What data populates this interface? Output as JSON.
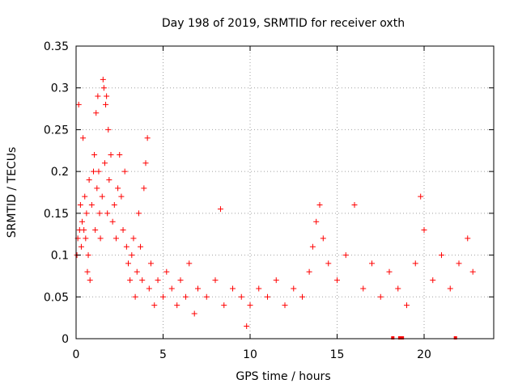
{
  "chart_data": {
    "type": "scatter",
    "title": "Day 198 of 2019, SRMTID for receiver oxth",
    "xlabel": "GPS time / hours",
    "ylabel": "SRMTID / TECUs",
    "xlim": [
      0,
      24
    ],
    "ylim": [
      0,
      0.35
    ],
    "xticks": [
      0,
      5,
      10,
      15,
      20
    ],
    "xtick_labels": [
      "0",
      "5",
      "10",
      "15",
      "20"
    ],
    "yticks": [
      0,
      0.05,
      0.1,
      0.15,
      0.2,
      0.25,
      0.3,
      0.35
    ],
    "ytick_labels": [
      "0",
      "0.05",
      "0.1",
      "0.15",
      "0.2",
      "0.25",
      "0.3",
      "0.35"
    ],
    "grid": true,
    "marker": "+",
    "color": "#ff0000",
    "series": [
      {
        "name": "SRMTID",
        "points": [
          [
            0.05,
            0.1
          ],
          [
            0.1,
            0.12
          ],
          [
            0.15,
            0.28
          ],
          [
            0.2,
            0.13
          ],
          [
            0.25,
            0.16
          ],
          [
            0.3,
            0.11
          ],
          [
            0.35,
            0.14
          ],
          [
            0.4,
            0.24
          ],
          [
            0.45,
            0.13
          ],
          [
            0.5,
            0.17
          ],
          [
            0.55,
            0.12
          ],
          [
            0.6,
            0.15
          ],
          [
            0.65,
            0.08
          ],
          [
            0.7,
            0.1
          ],
          [
            0.75,
            0.19
          ],
          [
            0.8,
            0.07
          ],
          [
            0.9,
            0.16
          ],
          [
            1.0,
            0.2
          ],
          [
            1.05,
            0.22
          ],
          [
            1.1,
            0.13
          ],
          [
            1.15,
            0.27
          ],
          [
            1.2,
            0.18
          ],
          [
            1.25,
            0.29
          ],
          [
            1.3,
            0.2
          ],
          [
            1.35,
            0.15
          ],
          [
            1.4,
            0.12
          ],
          [
            1.5,
            0.17
          ],
          [
            1.55,
            0.31
          ],
          [
            1.6,
            0.3
          ],
          [
            1.65,
            0.21
          ],
          [
            1.7,
            0.28
          ],
          [
            1.75,
            0.29
          ],
          [
            1.8,
            0.15
          ],
          [
            1.85,
            0.25
          ],
          [
            1.9,
            0.19
          ],
          [
            2.0,
            0.22
          ],
          [
            2.1,
            0.14
          ],
          [
            2.2,
            0.16
          ],
          [
            2.3,
            0.12
          ],
          [
            2.4,
            0.18
          ],
          [
            2.5,
            0.22
          ],
          [
            2.6,
            0.17
          ],
          [
            2.7,
            0.13
          ],
          [
            2.8,
            0.2
          ],
          [
            2.9,
            0.11
          ],
          [
            3.0,
            0.09
          ],
          [
            3.1,
            0.07
          ],
          [
            3.2,
            0.1
          ],
          [
            3.3,
            0.12
          ],
          [
            3.4,
            0.05
          ],
          [
            3.5,
            0.08
          ],
          [
            3.6,
            0.15
          ],
          [
            3.7,
            0.11
          ],
          [
            3.8,
            0.07
          ],
          [
            3.9,
            0.18
          ],
          [
            4.0,
            0.21
          ],
          [
            4.1,
            0.24
          ],
          [
            4.2,
            0.06
          ],
          [
            4.3,
            0.09
          ],
          [
            4.5,
            0.04
          ],
          [
            4.7,
            0.07
          ],
          [
            5.0,
            0.05
          ],
          [
            5.2,
            0.08
          ],
          [
            5.5,
            0.06
          ],
          [
            5.8,
            0.04
          ],
          [
            6.0,
            0.07
          ],
          [
            6.3,
            0.05
          ],
          [
            6.5,
            0.09
          ],
          [
            6.8,
            0.03
          ],
          [
            7.0,
            0.06
          ],
          [
            7.5,
            0.05
          ],
          [
            8.0,
            0.07
          ],
          [
            8.3,
            0.155
          ],
          [
            8.5,
            0.04
          ],
          [
            9.0,
            0.06
          ],
          [
            9.5,
            0.05
          ],
          [
            9.8,
            0.015
          ],
          [
            10.0,
            0.04
          ],
          [
            10.5,
            0.06
          ],
          [
            11.0,
            0.05
          ],
          [
            11.5,
            0.07
          ],
          [
            12.0,
            0.04
          ],
          [
            12.5,
            0.06
          ],
          [
            13.0,
            0.05
          ],
          [
            13.4,
            0.08
          ],
          [
            13.6,
            0.11
          ],
          [
            13.8,
            0.14
          ],
          [
            14.0,
            0.16
          ],
          [
            14.2,
            0.12
          ],
          [
            14.5,
            0.09
          ],
          [
            15.0,
            0.07
          ],
          [
            15.5,
            0.1
          ],
          [
            16.0,
            0.16
          ],
          [
            16.5,
            0.06
          ],
          [
            17.0,
            0.09
          ],
          [
            17.5,
            0.05
          ],
          [
            18.0,
            0.08
          ],
          [
            18.5,
            0.06
          ],
          [
            19.0,
            0.04
          ],
          [
            19.5,
            0.09
          ],
          [
            19.8,
            0.17
          ],
          [
            20.0,
            0.13
          ],
          [
            20.5,
            0.07
          ],
          [
            21.0,
            0.1
          ],
          [
            21.5,
            0.06
          ],
          [
            22.0,
            0.09
          ],
          [
            22.5,
            0.12
          ],
          [
            22.8,
            0.08
          ]
        ]
      }
    ],
    "zero_markers_x": [
      18.2,
      18.6,
      18.75,
      21.8
    ]
  }
}
